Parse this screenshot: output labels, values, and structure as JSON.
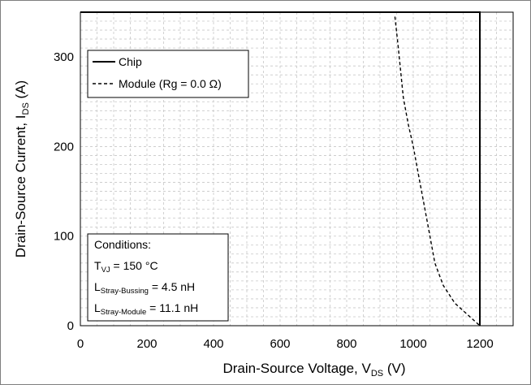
{
  "chart_data": {
    "type": "line",
    "xlabel": {
      "main": "Drain-Source Voltage, V",
      "sub": "DS",
      "unit": " (V)"
    },
    "ylabel": {
      "main": "Drain-Source Current, I",
      "sub": "DS",
      "unit": " (A)"
    },
    "xlim": [
      0,
      1300
    ],
    "ylim": [
      0,
      350
    ],
    "xticks": [
      0,
      200,
      400,
      600,
      800,
      1000,
      1200
    ],
    "yticks": [
      0,
      100,
      200,
      300
    ],
    "grid": true,
    "legend": {
      "position": "top-left",
      "box": true
    },
    "series": [
      {
        "name": "Chip",
        "style": "solid",
        "color": "#000000",
        "x": [
          0,
          1200,
          1200
        ],
        "y": [
          350,
          350,
          0
        ]
      },
      {
        "name": "Module (Rg = 0.0 Ω)",
        "style": "dashed",
        "color": "#000000",
        "x": [
          945,
          955,
          970,
          985,
          1000,
          1015,
          1030,
          1045,
          1065,
          1090,
          1125,
          1200
        ],
        "y": [
          345,
          310,
          255,
          225,
          200,
          170,
          140,
          110,
          70,
          45,
          25,
          0
        ]
      }
    ],
    "annotation": {
      "title": "Conditions:",
      "lines": [
        {
          "main": "T",
          "sub": "VJ",
          "rest": " = 150 °C"
        },
        {
          "main": "L",
          "sub": "Stray-Bussing",
          "rest": " = 4.5 nH"
        },
        {
          "main": "L",
          "sub": "Stray-Module",
          "rest": " = 11.1 nH"
        }
      ]
    }
  }
}
